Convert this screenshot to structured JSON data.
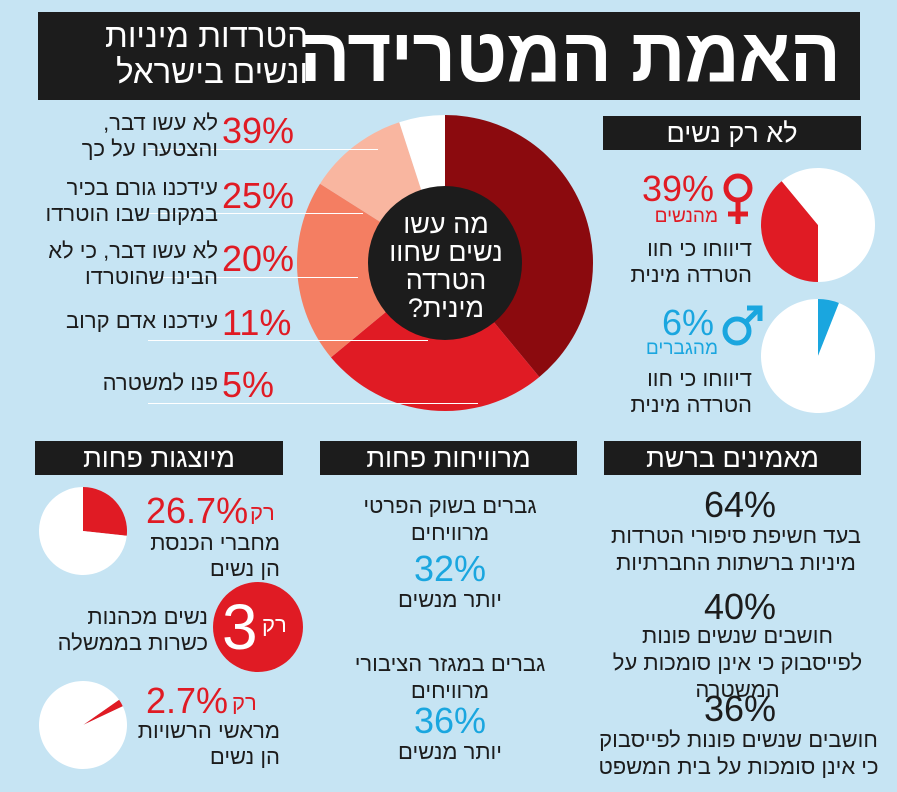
{
  "title": "האמת המטרידה",
  "subtitle": "הטרדות מיניות ונשים בישראל",
  "colors": {
    "background": "#c6e4f3",
    "dark": "#1c1c1c",
    "red": "#e01b24",
    "blue": "#1aa6df",
    "maroon": "#8b0a0e",
    "salmon": "#f47e62",
    "light_salmon": "#f9b6a0"
  },
  "chart_data": [
    {
      "type": "pie",
      "title": "מה עשו נשים שחוו הטרדה מינית?",
      "categories": [
        "לא עשו דבר, והצטערו על כך",
        "עידכנו גורם בכיר במקום שבו הוטרדו",
        "לא עשו דבר, כי לא הבינו שהוטרדו",
        "עידכנו אדם קרוב",
        "פנו למשטרה"
      ],
      "values": [
        39,
        25,
        20,
        11,
        5
      ]
    },
    {
      "type": "pie",
      "title": "מהנשים",
      "values": [
        39,
        61
      ]
    },
    {
      "type": "pie",
      "title": "מהגברים",
      "values": [
        6,
        94
      ]
    },
    {
      "type": "pie",
      "title": "מחברי הכנסת הן נשים",
      "values": [
        26.7,
        73.3
      ]
    },
    {
      "type": "pie",
      "title": "מראשי הרשויות הן נשים",
      "values": [
        2.7,
        97.3
      ]
    }
  ],
  "main_chart": {
    "question": "מה עשו נשים שחוו הטרדה מינית?",
    "items": [
      {
        "pct": "39%",
        "label": "לא עשו דבר, והצטערו על כך"
      },
      {
        "pct": "25%",
        "label": "עידכנו גורם בכיר במקום שבו הוטרדו"
      },
      {
        "pct": "20%",
        "label": "לא עשו דבר, כי לא הבינו שהוטרדו"
      },
      {
        "pct": "11%",
        "label": "עידכנו אדם קרוב"
      },
      {
        "pct": "5%",
        "label": "פנו למשטרה"
      }
    ]
  },
  "not_only_women": {
    "header": "לא רק נשים",
    "women": {
      "pct": "39%",
      "of": "מהנשים",
      "text": "דיווחו כי חוו הטרדה מינית",
      "icon": "female-icon"
    },
    "men": {
      "pct": "6%",
      "of": "מהגברים",
      "text": "דיווחו כי חוו הטרדה מינית",
      "icon": "male-icon"
    }
  },
  "underrepresented": {
    "header": "מיוצגות פחות",
    "knesset": {
      "prefix": "רק",
      "pct": "26.7%",
      "text": "מחברי הכנסת הן נשים"
    },
    "ministers": {
      "prefix": "רק",
      "num": "3",
      "text": "נשים מכהנות כשרות בממשלה"
    },
    "mayors": {
      "prefix": "רק",
      "pct": "2.7%",
      "text": "מראשי הרשויות הן נשים"
    }
  },
  "earn_less": {
    "header": "מרוויחות פחות",
    "private": {
      "text": "גברים בשוק הפרטי מרוויחים",
      "pct": "32%",
      "suffix": "יותר מנשים"
    },
    "public": {
      "text": "גברים במגזר הציבורי מרוויחים",
      "pct": "36%",
      "suffix": "יותר מנשים"
    }
  },
  "believe_online": {
    "header": "מאמינים ברשת",
    "items": [
      {
        "pct": "64%",
        "text": "בעד חשיפת סיפורי הטרדות מיניות ברשתות החברתיות"
      },
      {
        "pct": "40%",
        "text": "חושבים שנשים פונות לפייסבוק כי אינן סומכות על המשטרה"
      },
      {
        "pct": "36%",
        "text": "חושבים שנשים פונות לפייסבוק כי אינן סומכות על בית המשפט"
      }
    ]
  }
}
